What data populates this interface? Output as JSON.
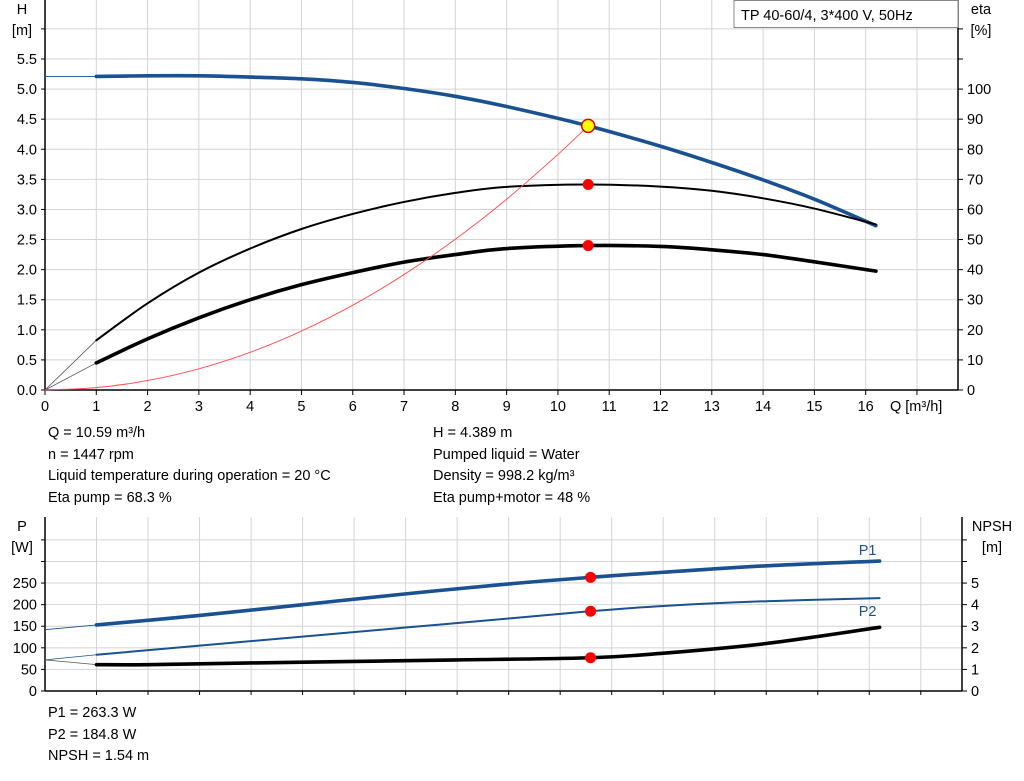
{
  "chart_data": [
    {
      "type": "line",
      "legend_box": "TP 40-60/4, 3*400 V, 50Hz",
      "xlabel": "Q [m³/h]",
      "ylabel_left": [
        "H",
        "[m]"
      ],
      "ylabel_right": [
        "eta",
        "[%]"
      ],
      "xlim": [
        0,
        17.8
      ],
      "ylim_left": [
        0,
        6.48
      ],
      "ylim_right": [
        0,
        129.6
      ],
      "x_ticks": [
        "0",
        "1",
        "2",
        "3",
        "4",
        "5",
        "6",
        "7",
        "8",
        "9",
        "10",
        "11",
        "12",
        "13",
        "14",
        "15",
        "16"
      ],
      "y_left_ticks": [
        "0.0",
        "0.5",
        "1.0",
        "1.5",
        "2.0",
        "2.5",
        "3.0",
        "3.5",
        "4.0",
        "4.5",
        "5.0",
        "5.5"
      ],
      "y_right_ticks": [
        "0",
        "10",
        "20",
        "30",
        "40",
        "50",
        "60",
        "70",
        "80",
        "90",
        "100"
      ],
      "grid": true,
      "series": [
        {
          "axis": "left",
          "color": "#1a5190",
          "weight": "thick",
          "x": [
            1,
            2,
            3,
            4,
            5,
            6,
            7,
            8,
            9,
            10.59,
            12,
            13,
            14,
            15,
            16.2
          ],
          "y": [
            5.21,
            5.22,
            5.22,
            5.2,
            5.17,
            5.11,
            5.01,
            4.88,
            4.71,
            4.389,
            4.05,
            3.78,
            3.49,
            3.17,
            2.73
          ],
          "extension": {
            "x": [
              0,
              1
            ],
            "y": [
              5.21,
              5.21
            ]
          }
        },
        {
          "axis": "right",
          "color": "#000000",
          "weight": "medium",
          "x": [
            1,
            2,
            3,
            4,
            5,
            6,
            7,
            8,
            9,
            10.59,
            12,
            13,
            14,
            15,
            16.2
          ],
          "y": [
            16.5,
            28.8,
            39,
            47,
            53.5,
            58.5,
            62.5,
            65.5,
            67.5,
            68.3,
            67.6,
            66.2,
            63.7,
            60.3,
            55
          ],
          "extension": {
            "x": [
              0,
              1
            ],
            "y": [
              0,
              16.5
            ]
          }
        },
        {
          "axis": "right",
          "color": "#000000",
          "weight": "thick",
          "x": [
            1,
            2,
            3,
            4,
            5,
            6,
            7,
            8,
            9,
            10.59,
            12,
            13,
            14,
            15,
            16.2
          ],
          "y": [
            9,
            17,
            24,
            30,
            35,
            39,
            42.5,
            45,
            47,
            48,
            47.7,
            46.6,
            45,
            42.6,
            39.5
          ],
          "extension": {
            "x": [
              0,
              1
            ],
            "y": [
              0,
              9
            ]
          }
        },
        {
          "axis": "left",
          "color": "#ff5050",
          "weight": "thin",
          "type": "system-curve",
          "x": [
            0,
            1,
            2,
            3,
            4,
            5,
            6,
            7,
            8,
            9,
            10,
            10.59
          ],
          "y": [
            0,
            0.039,
            0.157,
            0.352,
            0.626,
            0.979,
            1.409,
            1.918,
            2.505,
            3.17,
            3.914,
            4.389
          ]
        }
      ],
      "duty_point": {
        "x": 10.59,
        "H": 4.389,
        "eta_pump": 68.3,
        "eta_total": 48
      },
      "colors": {
        "duty_point_fill": "#ffff00",
        "duty_point_stroke": "#e00000",
        "marker": "#ff0000"
      }
    },
    {
      "type": "line",
      "ylabel_left": [
        "P",
        "[W]"
      ],
      "ylabel_right": [
        "NPSH",
        "[m]"
      ],
      "xlim": [
        0,
        17.8
      ],
      "ylim_left": [
        0,
        403
      ],
      "ylim_right": [
        0,
        8.06
      ],
      "y_left_ticks": [
        "0",
        "50",
        "100",
        "150",
        "200",
        "250"
      ],
      "y_right_ticks": [
        "0",
        "1",
        "2",
        "3",
        "4",
        "5"
      ],
      "grid": true,
      "series": [
        {
          "name": "P1",
          "axis": "left",
          "color": "#1a5190",
          "weight": "thick",
          "x": [
            1,
            3,
            5,
            7,
            9,
            10.59,
            12,
            14,
            16.2
          ],
          "y": [
            153,
            175,
            200,
            225,
            248,
            263.3,
            275,
            290,
            301
          ],
          "extension": {
            "x": [
              0,
              1
            ],
            "y": [
              142,
              153
            ]
          }
        },
        {
          "name": "P2",
          "axis": "left",
          "color": "#1a5190",
          "weight": "medium",
          "x": [
            1,
            3,
            5,
            7,
            9,
            10.59,
            12,
            14,
            16.2
          ],
          "y": [
            84,
            105,
            126,
            147,
            168,
            184.8,
            197,
            208,
            215
          ],
          "extension": {
            "x": [
              0,
              1
            ],
            "y": [
              72,
              84
            ]
          }
        },
        {
          "axis": "right",
          "color": "#000000",
          "weight": "thick",
          "x": [
            1,
            2,
            4,
            6,
            8,
            10.59,
            12,
            14,
            16.2
          ],
          "y": [
            1.22,
            1.22,
            1.3,
            1.37,
            1.44,
            1.54,
            1.75,
            2.2,
            2.95
          ],
          "extension": {
            "x": [
              0,
              1
            ],
            "y": [
              1.44,
              1.22
            ]
          }
        }
      ],
      "duty_point": {
        "x": 10.59,
        "P1": 263.3,
        "P2": 184.8,
        "NPSH": 1.54
      }
    }
  ],
  "info": {
    "left": [
      "Q = 10.59 m³/h",
      "n = 1447 rpm",
      "Liquid temperature during operation = 20 °C",
      "Eta pump = 68.3 %"
    ],
    "right": [
      "H = 4.389 m",
      "Pumped liquid = Water",
      "Density = 998.2 kg/m³",
      "Eta pump+motor = 48 %"
    ],
    "bottom": [
      "P1 = 263.3 W",
      "P2 = 184.8 W",
      "NPSH = 1.54 m"
    ]
  }
}
